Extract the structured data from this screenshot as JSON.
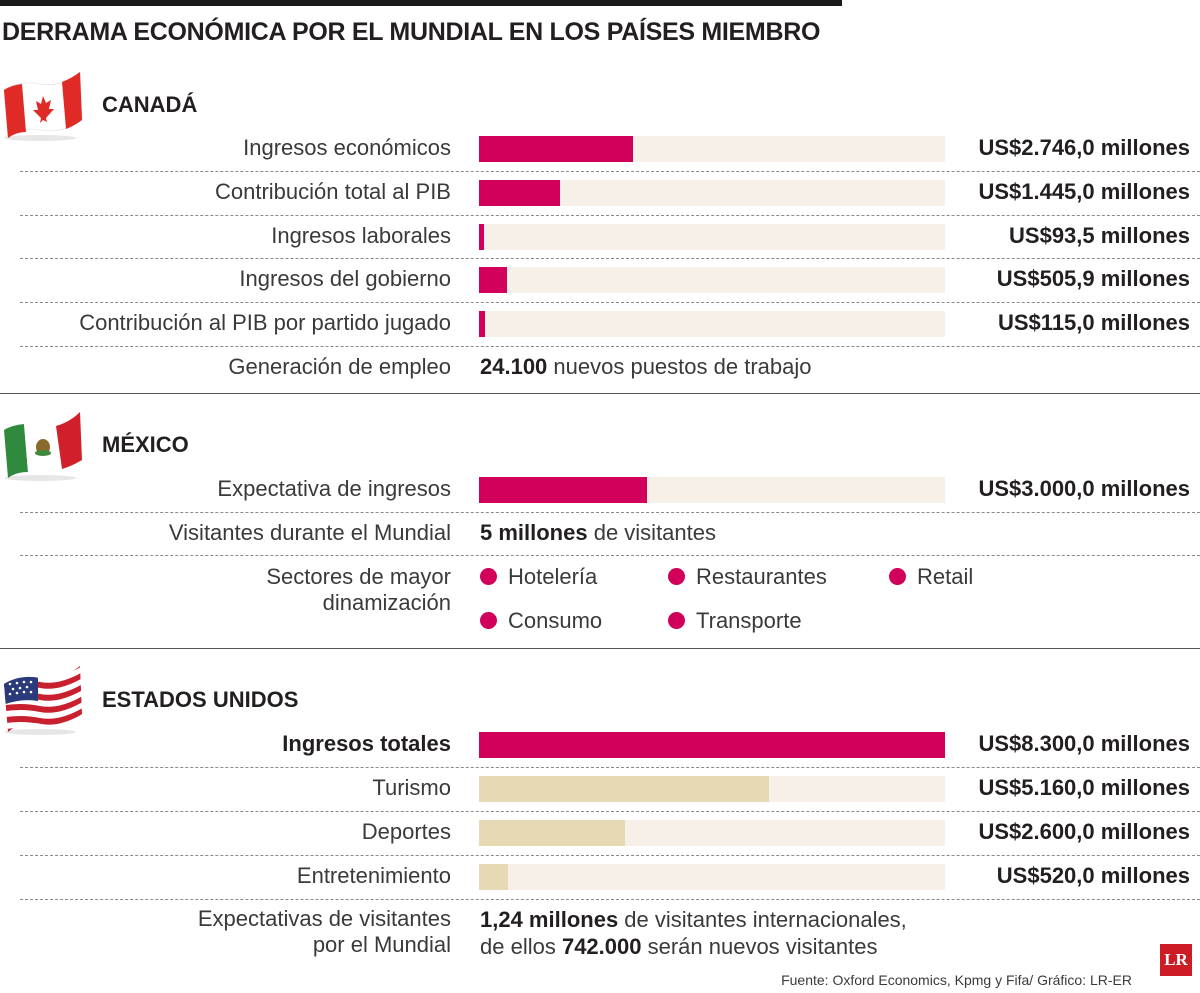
{
  "title": "DERRAMA ECONÓMICA POR EL MUNDIAL EN LOS PAÍSES MIEMBRO",
  "colors": {
    "magenta": "#d1005a",
    "beige": "#e8d9b5",
    "track": "#f6f0e8"
  },
  "canada": {
    "name": "CANADÁ",
    "rows": [
      {
        "label": "Ingresos económicos",
        "value": "US$2.746,0 millones"
      },
      {
        "label": "Contribución total al PIB",
        "value": "US$1.445,0 millones"
      },
      {
        "label": "Ingresos laborales",
        "value": "US$93,5 millones"
      },
      {
        "label": "Ingresos del gobierno",
        "value": "US$505,9 millones"
      },
      {
        "label": "Contribución al PIB por partido jugado",
        "value": "US$115,0 millones"
      }
    ],
    "employment": {
      "label": "Generación de empleo",
      "number": "24.100",
      "text": " nuevos puestos de trabajo"
    }
  },
  "mexico": {
    "name": "MÉXICO",
    "rows": [
      {
        "label": "Expectativa de ingresos",
        "value": "US$3.000,0 millones"
      }
    ],
    "visitors": {
      "label": "Visitantes durante el Mundial",
      "number": "5 millones",
      "text": " de visitantes"
    },
    "sectors": {
      "label_line1": "Sectores de mayor",
      "label_line2": "dinamización",
      "items": [
        "Hotelería",
        "Restaurantes",
        "Retail",
        "Consumo",
        "Transporte"
      ]
    }
  },
  "usa": {
    "name": "ESTADOS UNIDOS",
    "rows": [
      {
        "label": "Ingresos totales",
        "value": "US$8.300,0 millones"
      },
      {
        "label": "Turismo",
        "value": "US$5.160,0 millones"
      },
      {
        "label": "Deportes",
        "value": "US$2.600,0 millones"
      },
      {
        "label": "Entretenimiento",
        "value": "US$520,0 millones"
      }
    ],
    "visitors": {
      "label_line1": "Expectativas de visitantes",
      "label_line2": "por el Mundial",
      "number1": "1,24 millones",
      "text1": " de visitantes internacionales,",
      "text2a": "de ellos ",
      "number2": "742.000",
      "text2b": " serán nuevos visitantes"
    }
  },
  "source": "Fuente: Oxford Economics, Kpmg y Fifa/ Gráfico: LR-ER",
  "logo": "LR",
  "chart_data": {
    "type": "bar",
    "orientation": "horizontal",
    "units": "US$ millones",
    "xlim": [
      0,
      8300
    ],
    "series": [
      {
        "country": "CANADÁ",
        "categories": [
          "Ingresos económicos",
          "Contribución total al PIB",
          "Ingresos laborales",
          "Ingresos del gobierno",
          "Contribución al PIB por partido jugado"
        ],
        "values": [
          2746.0,
          1445.0,
          93.5,
          505.9,
          115.0
        ],
        "color": "#d1005a"
      },
      {
        "country": "MÉXICO",
        "categories": [
          "Expectativa de ingresos"
        ],
        "values": [
          3000.0
        ],
        "color": "#d1005a"
      },
      {
        "country": "ESTADOS UNIDOS",
        "categories": [
          "Ingresos totales",
          "Turismo",
          "Deportes",
          "Entretenimiento"
        ],
        "values": [
          8300.0,
          5160.0,
          2600.0,
          520.0
        ],
        "colors": [
          "#d1005a",
          "#e8d9b5",
          "#e8d9b5",
          "#e8d9b5"
        ]
      }
    ]
  }
}
